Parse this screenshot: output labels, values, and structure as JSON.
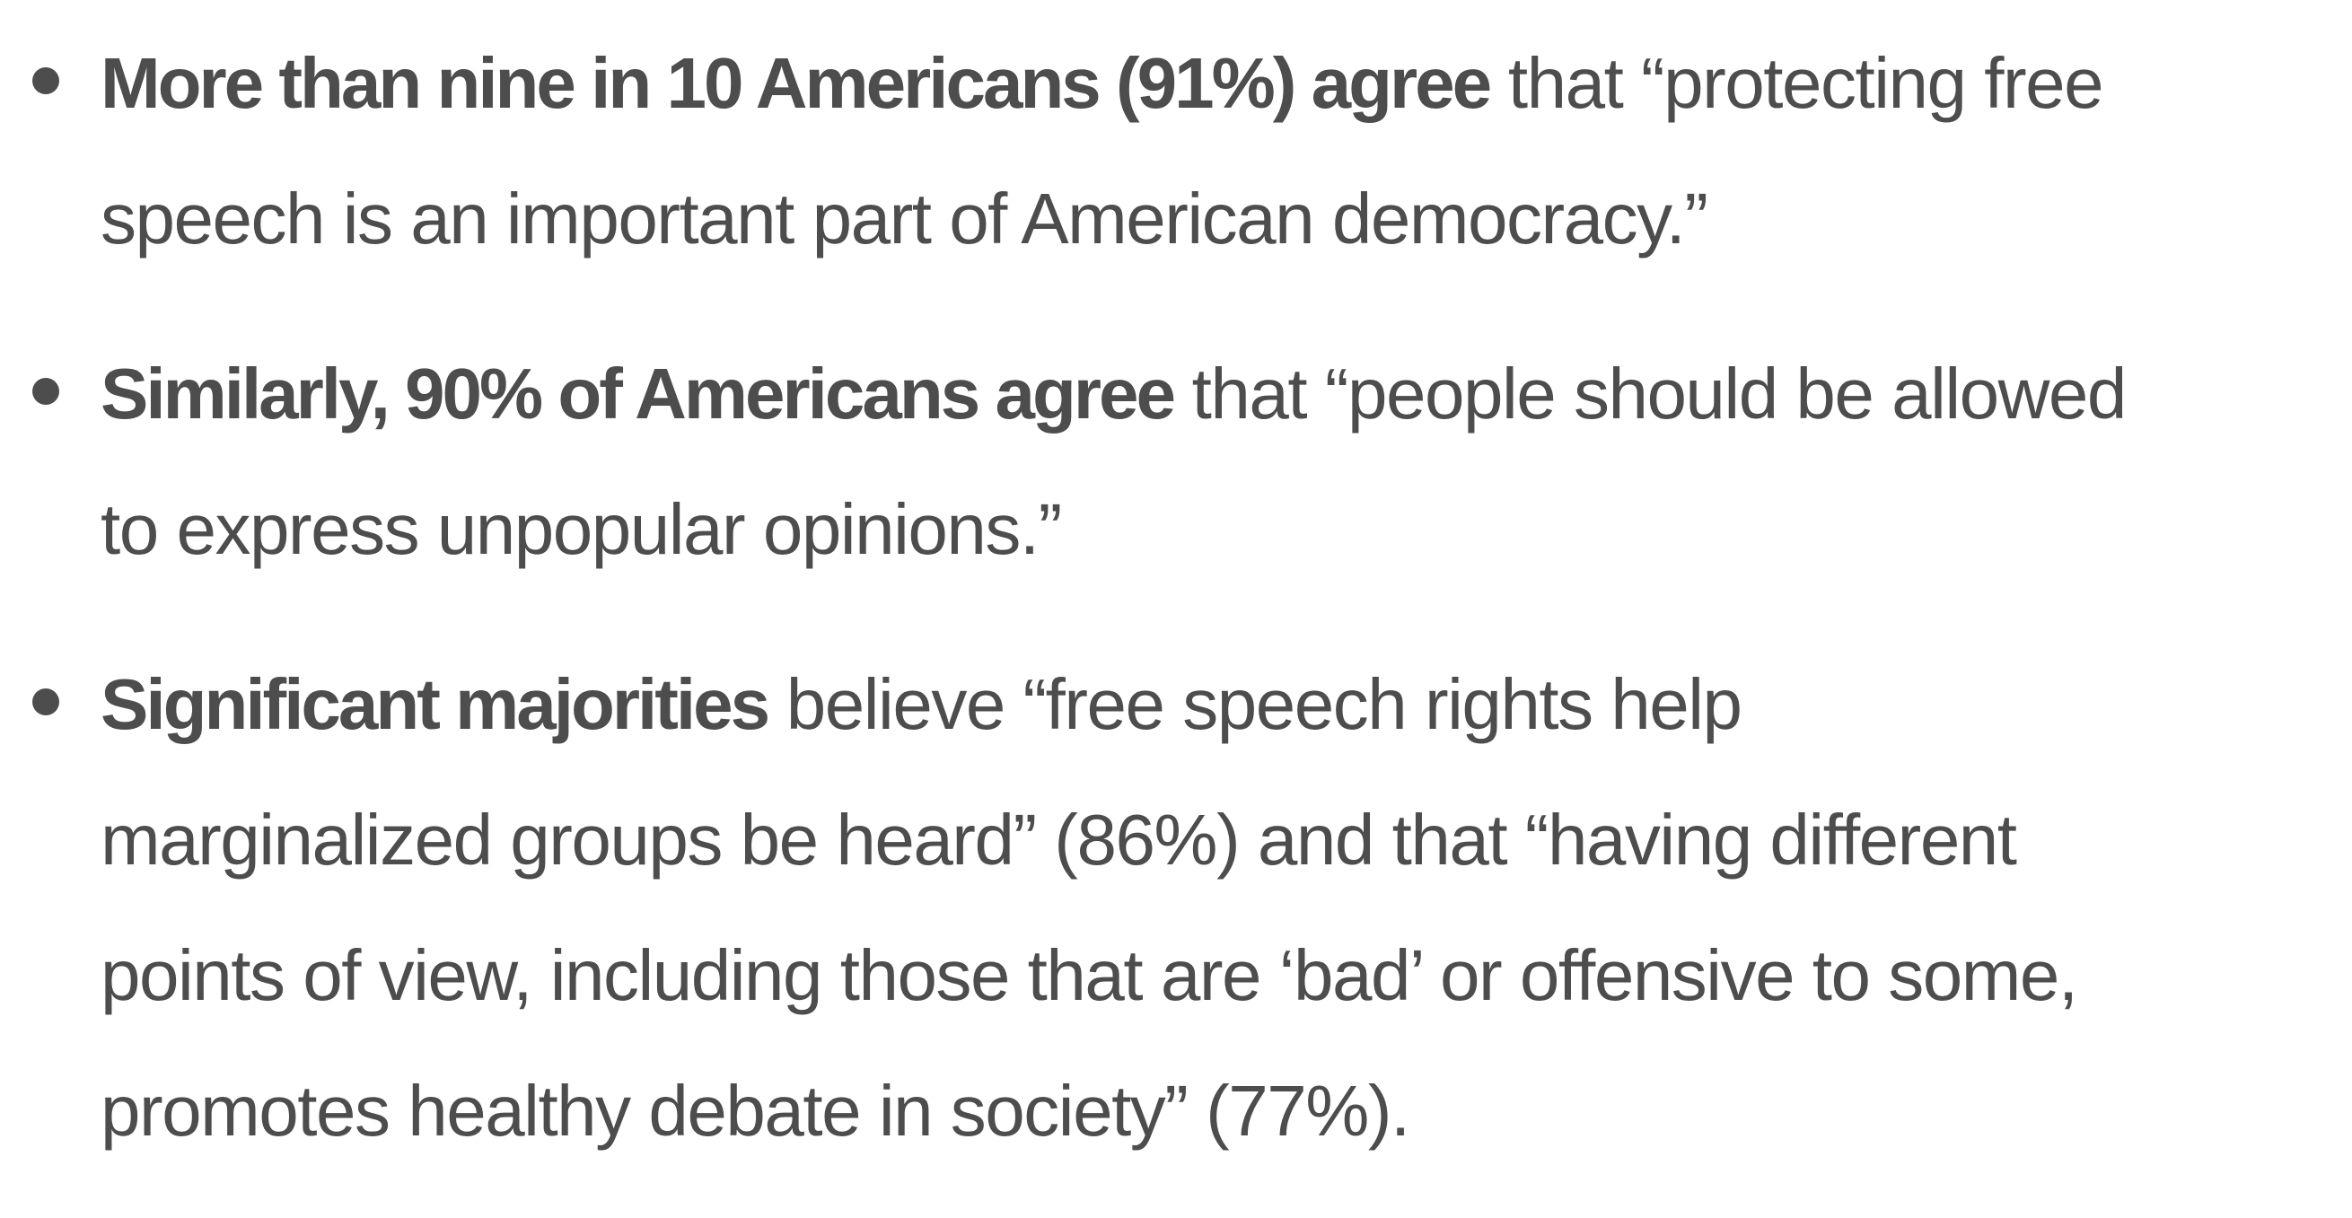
{
  "bullets": [
    {
      "bold": "More than nine in 10 Americans (91%) agree",
      "first_rest": " that “protecting free",
      "lines": [
        "speech is an important part of American democracy.”"
      ]
    },
    {
      "bold": "Similarly, 90% of Americans agree",
      "first_rest": " that “people should be allowed",
      "lines": [
        "to express unpopular opinions.”"
      ]
    },
    {
      "bold": "Significant majorities",
      "first_rest": " believe “free speech rights help",
      "lines": [
        "marginalized groups be heard” (86%) and that “having different",
        "points of view, including those that are ‘bad’ or offensive to some,",
        "promotes healthy debate in society” (77%)."
      ]
    }
  ],
  "colors": {
    "text": "#4d4d4d",
    "background": "#ffffff"
  }
}
